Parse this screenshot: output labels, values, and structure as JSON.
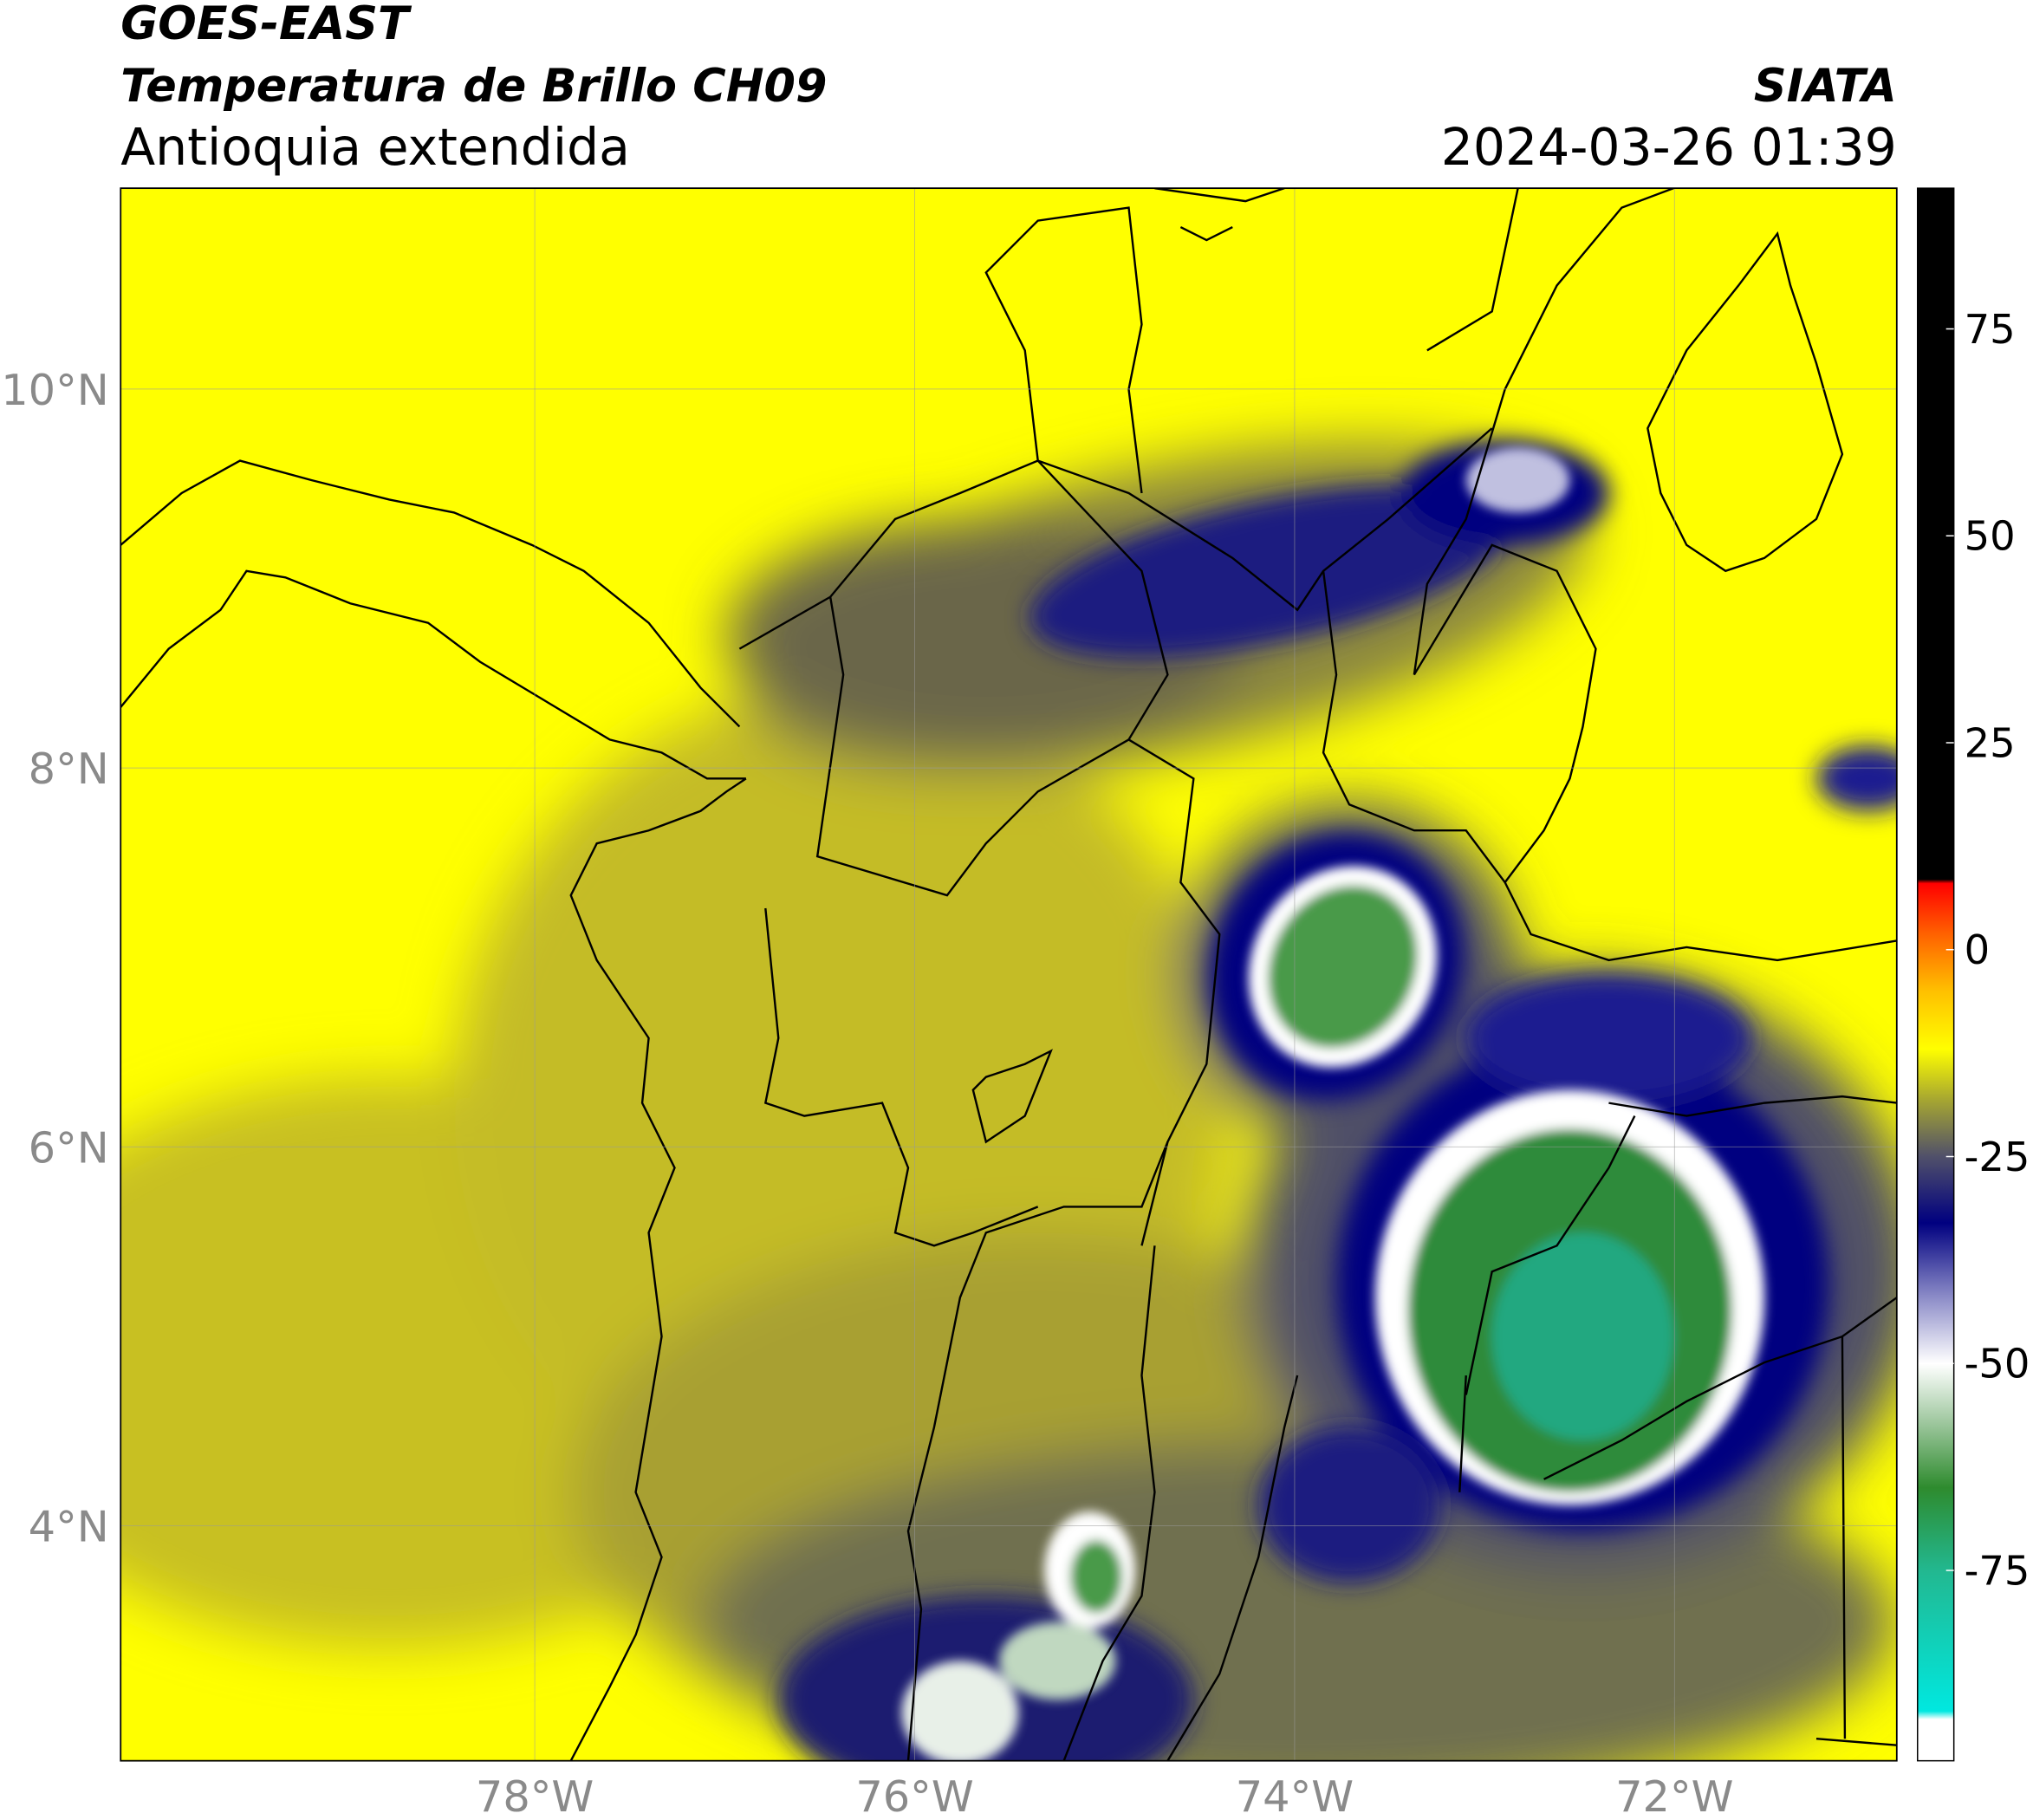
{
  "header": {
    "title": "GOES-EAST",
    "subtitle": "Temperatura de Brillo CH09",
    "region": "Antioquia extendida",
    "source": "SIATA",
    "datetime": "2024-03-26 01:39"
  },
  "map": {
    "lat_range": [
      2.76,
      11.06
    ],
    "lon_range": [
      -80.18,
      -70.83
    ],
    "grid": true,
    "lat_ticks": [
      {
        "value": 10,
        "label": "10°N"
      },
      {
        "value": 8,
        "label": "8°N"
      },
      {
        "value": 6,
        "label": "6°N"
      },
      {
        "value": 4,
        "label": "4°N"
      }
    ],
    "lon_ticks": [
      {
        "value": -78,
        "label": "78°W"
      },
      {
        "value": -76,
        "label": "76°W"
      },
      {
        "value": -74,
        "label": "74°W"
      },
      {
        "value": -72,
        "label": "72°W"
      }
    ]
  },
  "colorbar": {
    "range": [
      -98,
      92
    ],
    "ticks": [
      75,
      50,
      25,
      0,
      -25,
      -50,
      -75
    ],
    "stops": [
      {
        "value": -98,
        "color": "#ffffff"
      },
      {
        "value": -93,
        "color": "#ffffff"
      },
      {
        "value": -92,
        "color": "#00e8e0"
      },
      {
        "value": -75,
        "color": "#22b890"
      },
      {
        "value": -65,
        "color": "#2e8b2e"
      },
      {
        "value": -57,
        "color": "#a0c8a0"
      },
      {
        "value": -50,
        "color": "#ffffff"
      },
      {
        "value": -42,
        "color": "#8c8cc8"
      },
      {
        "value": -33,
        "color": "#000080"
      },
      {
        "value": -25,
        "color": "#50506a"
      },
      {
        "value": -18,
        "color": "#a8a830"
      },
      {
        "value": -12,
        "color": "#ffff00"
      },
      {
        "value": -5,
        "color": "#ffc000"
      },
      {
        "value": 2,
        "color": "#ff6000"
      },
      {
        "value": 8,
        "color": "#ff0000"
      },
      {
        "value": 8.5,
        "color": "#000000"
      },
      {
        "value": 92,
        "color": "#000000"
      }
    ]
  }
}
